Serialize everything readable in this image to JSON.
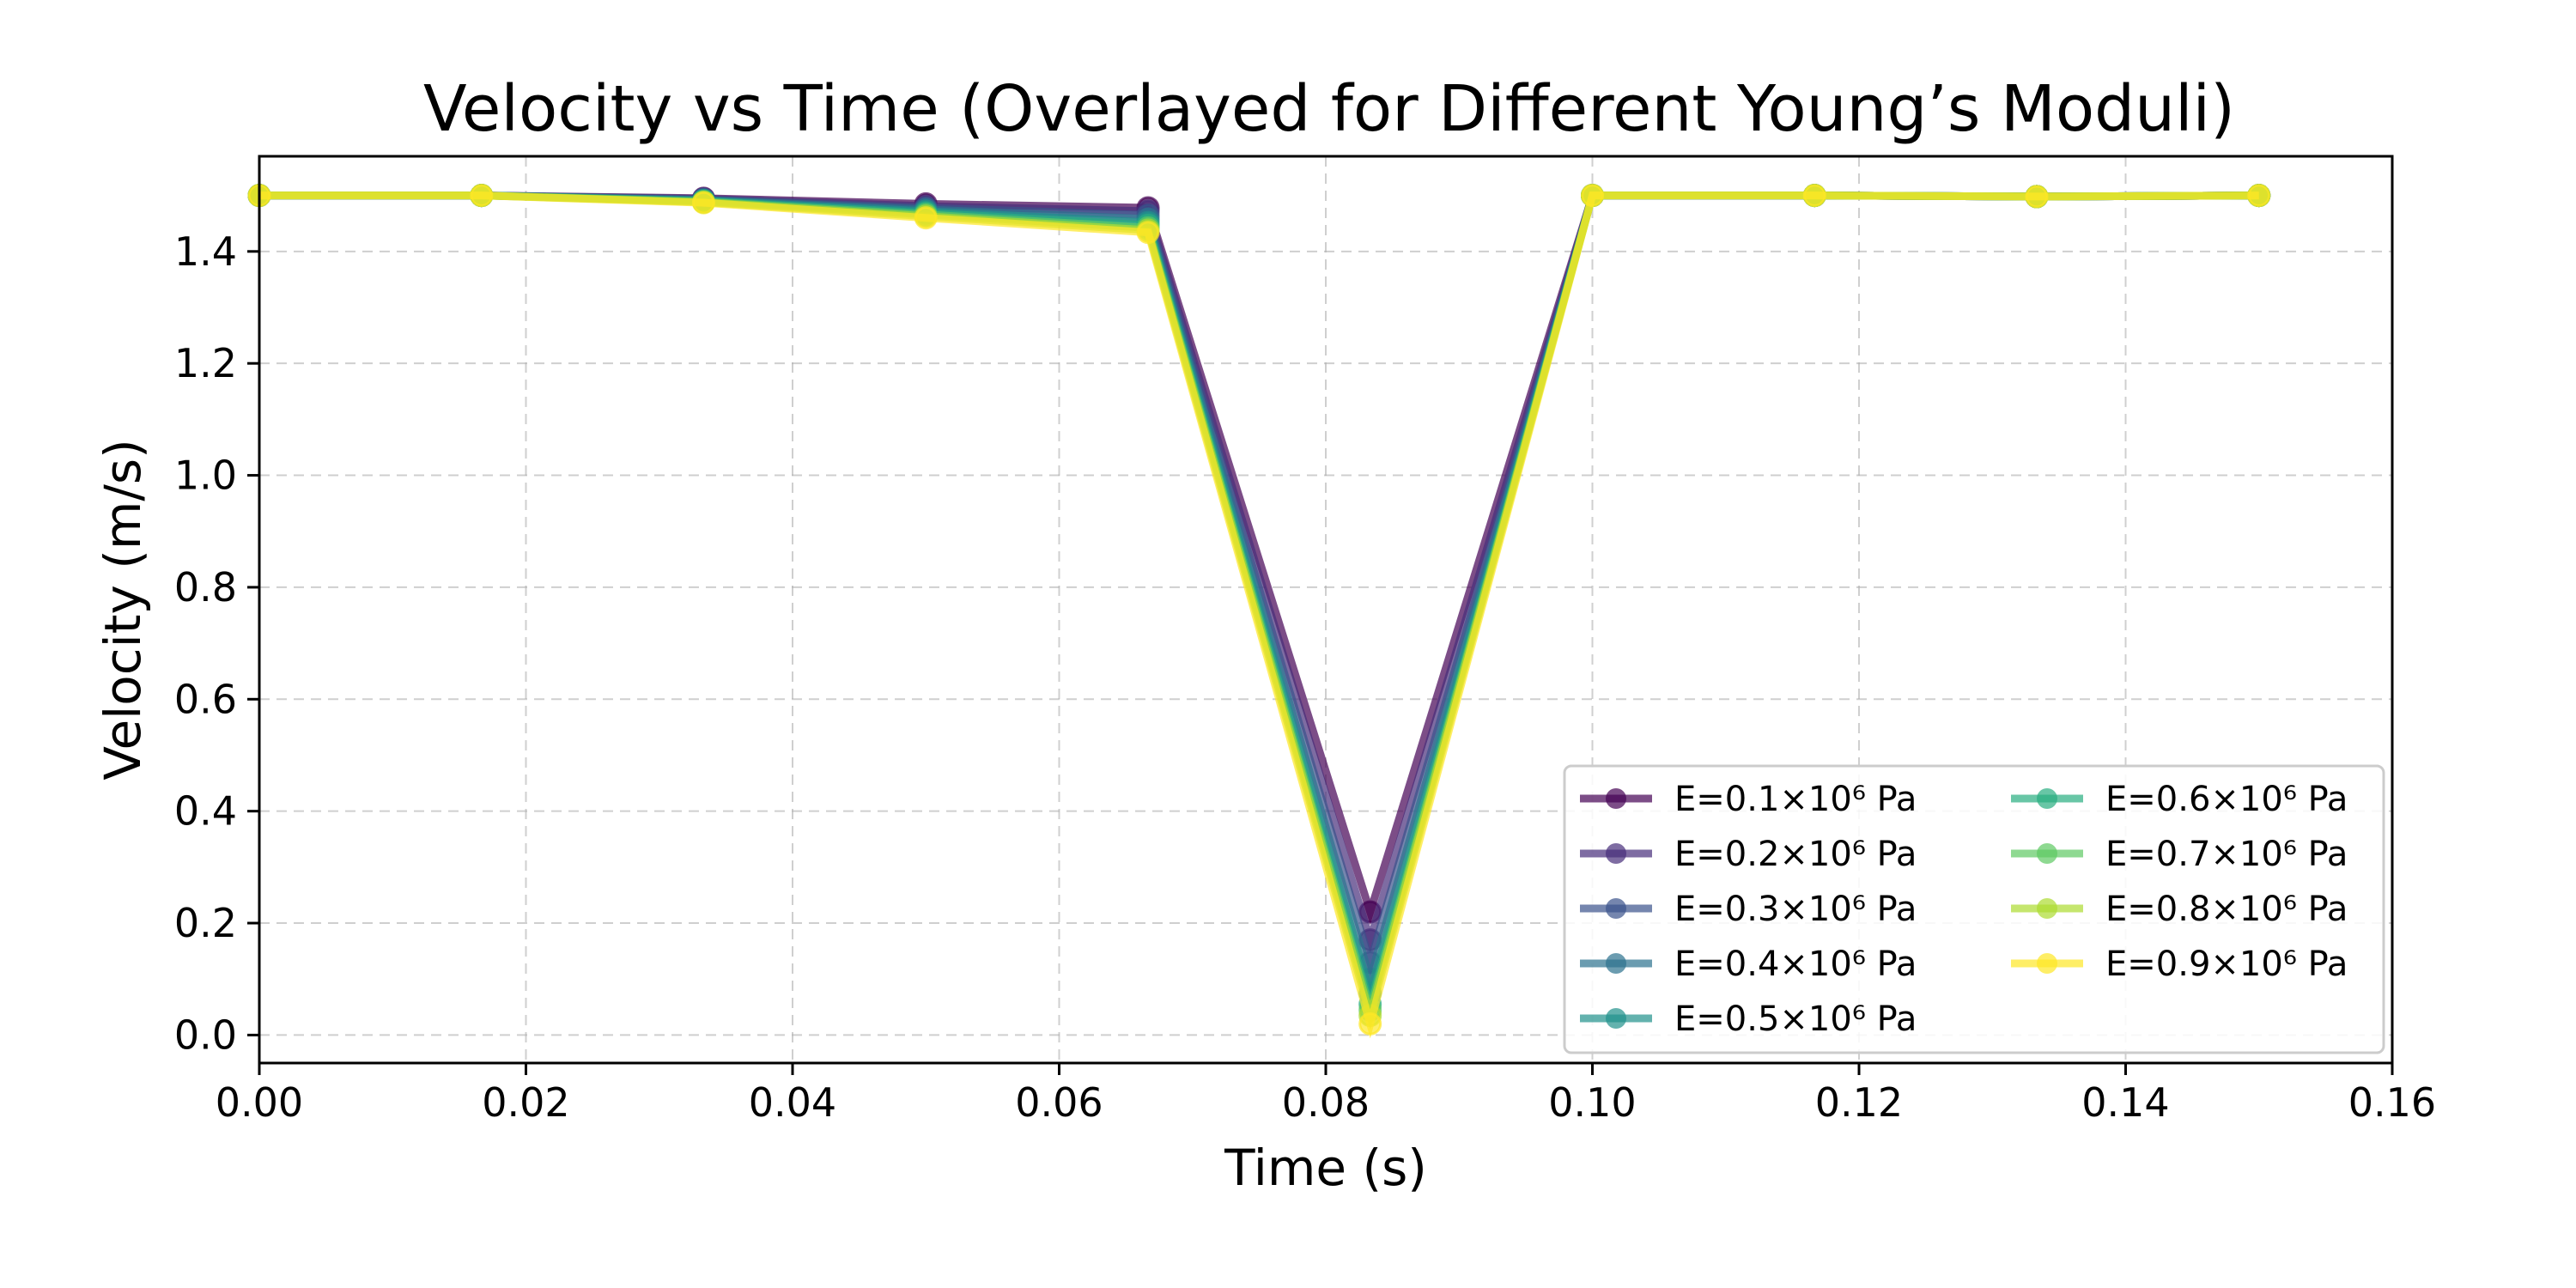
{
  "chart_data": {
    "type": "line",
    "title": "Velocity vs Time (Overlayed for Different Young’s Moduli)",
    "xlabel": "Time (s)",
    "ylabel": "Velocity (m/s)",
    "xlim": [
      0,
      0.16
    ],
    "ylim": [
      -0.05,
      1.57
    ],
    "grid": true,
    "legend_position": "bottom-right",
    "x": [
      0.0,
      0.01667,
      0.03333,
      0.05,
      0.06667,
      0.08333,
      0.1,
      0.11667,
      0.13333,
      0.15
    ],
    "x_ticks": [
      0.0,
      0.02,
      0.04,
      0.06,
      0.08,
      0.1,
      0.12,
      0.14,
      0.16
    ],
    "x_tick_labels": [
      "0.00",
      "0.02",
      "0.04",
      "0.06",
      "0.08",
      "0.10",
      "0.12",
      "0.14",
      "0.16"
    ],
    "y_ticks": [
      0.0,
      0.2,
      0.4,
      0.6,
      0.8,
      1.0,
      1.2,
      1.4
    ],
    "y_tick_labels": [
      "0.0",
      "0.2",
      "0.4",
      "0.6",
      "0.8",
      "1.0",
      "1.2",
      "1.4"
    ],
    "series": [
      {
        "name": "E=0.1×10⁶ Pa",
        "color": "#440154",
        "values": [
          1.5,
          1.5,
          1.495,
          1.485,
          1.478,
          0.22,
          1.5,
          1.5,
          1.498,
          1.5
        ]
      },
      {
        "name": "E=0.2×10⁶ Pa",
        "color": "#472d7b",
        "values": [
          1.5,
          1.5,
          1.494,
          1.481,
          1.472,
          0.17,
          1.5,
          1.5,
          1.498,
          1.5
        ]
      },
      {
        "name": "E=0.3×10⁶ Pa",
        "color": "#3b528b",
        "values": [
          1.5,
          1.5,
          1.493,
          1.478,
          1.465,
          0.13,
          1.5,
          1.5,
          1.498,
          1.5
        ]
      },
      {
        "name": "E=0.4×10⁶ Pa",
        "color": "#2c728e",
        "values": [
          1.5,
          1.5,
          1.492,
          1.475,
          1.458,
          0.1,
          1.5,
          1.5,
          1.498,
          1.5
        ]
      },
      {
        "name": "E=0.5×10⁶ Pa",
        "color": "#21918c",
        "values": [
          1.5,
          1.5,
          1.491,
          1.472,
          1.452,
          0.075,
          1.5,
          1.5,
          1.498,
          1.5
        ]
      },
      {
        "name": "E=0.6×10⁶ Pa",
        "color": "#28ae80",
        "values": [
          1.5,
          1.5,
          1.49,
          1.469,
          1.447,
          0.055,
          1.5,
          1.5,
          1.498,
          1.5
        ]
      },
      {
        "name": "E=0.7×10⁶ Pa",
        "color": "#5ec962",
        "values": [
          1.5,
          1.5,
          1.489,
          1.466,
          1.442,
          0.045,
          1.5,
          1.5,
          1.498,
          1.5
        ]
      },
      {
        "name": "E=0.8×10⁶ Pa",
        "color": "#addc30",
        "values": [
          1.5,
          1.5,
          1.488,
          1.463,
          1.438,
          0.035,
          1.5,
          1.5,
          1.498,
          1.5
        ]
      },
      {
        "name": "E=0.9×10⁶ Pa",
        "color": "#fde725",
        "values": [
          1.5,
          1.5,
          1.487,
          1.46,
          1.434,
          0.02,
          1.5,
          1.5,
          1.498,
          1.5
        ]
      }
    ]
  }
}
